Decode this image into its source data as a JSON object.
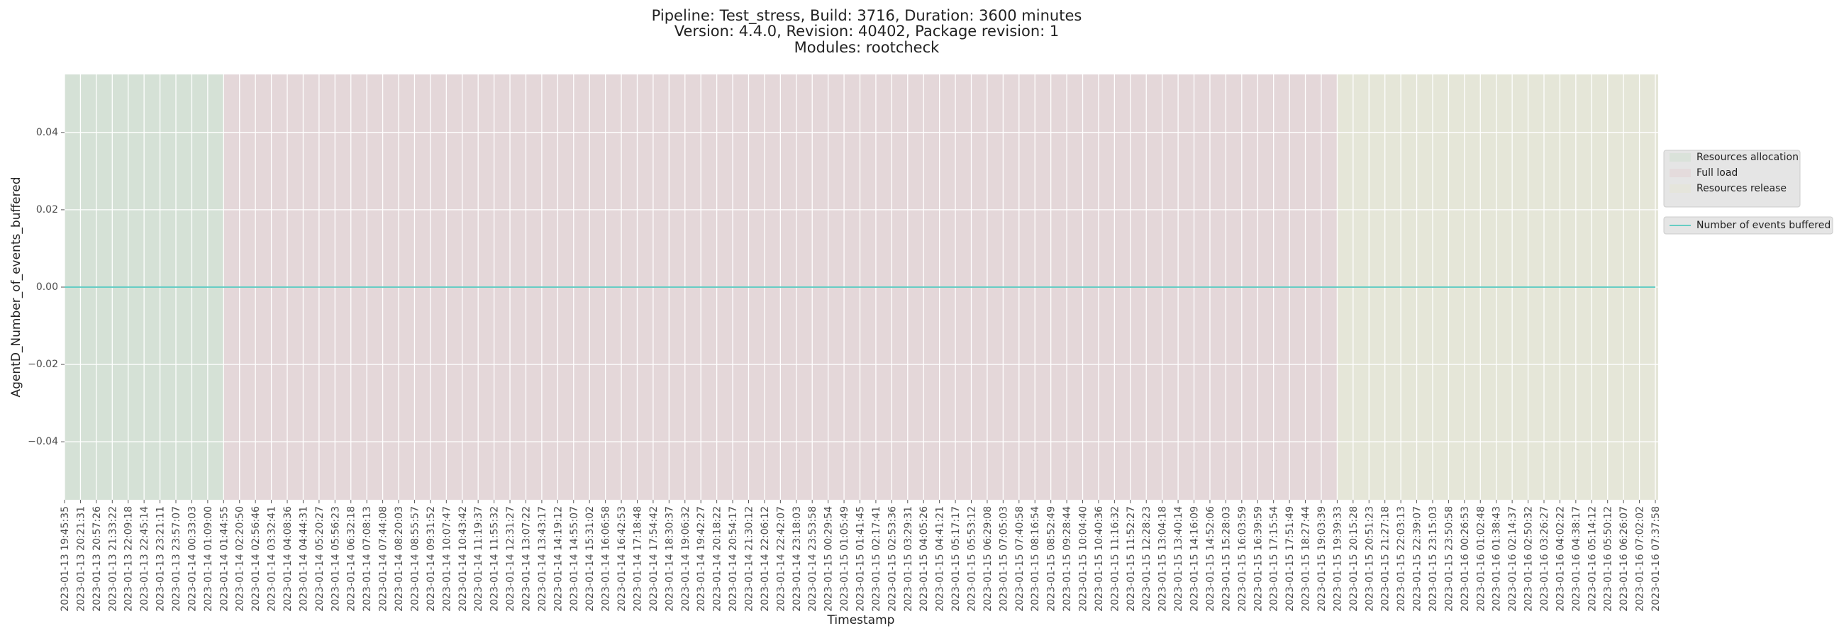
{
  "chart_data": {
    "type": "line",
    "title": [
      "Pipeline: Test_stress, Build: 3716, Duration: 3600 minutes",
      "Version: 4.4.0, Revision: 40402, Package revision: 1",
      "Modules: rootcheck"
    ],
    "x_label": "Timestamp",
    "y_label": "AgentD_Number_of_events_buffered",
    "categories": [
      "2023-01-13 19:45:35",
      "2023-01-13 20:21:31",
      "2023-01-13 20:57:26",
      "2023-01-13 21:33:22",
      "2023-01-13 22:09:18",
      "2023-01-13 22:45:14",
      "2023-01-13 23:21:11",
      "2023-01-13 23:57:07",
      "2023-01-14 00:33:03",
      "2023-01-14 01:09:00",
      "2023-01-14 01:44:55",
      "2023-01-14 02:20:50",
      "2023-01-14 02:56:46",
      "2023-01-14 03:32:41",
      "2023-01-14 04:08:36",
      "2023-01-14 04:44:31",
      "2023-01-14 05:20:27",
      "2023-01-14 05:56:23",
      "2023-01-14 06:32:18",
      "2023-01-14 07:08:13",
      "2023-01-14 07:44:08",
      "2023-01-14 08:20:03",
      "2023-01-14 08:55:57",
      "2023-01-14 09:31:52",
      "2023-01-14 10:07:47",
      "2023-01-14 10:43:42",
      "2023-01-14 11:19:37",
      "2023-01-14 11:55:32",
      "2023-01-14 12:31:27",
      "2023-01-14 13:07:22",
      "2023-01-14 13:43:17",
      "2023-01-14 14:19:12",
      "2023-01-14 14:55:07",
      "2023-01-14 15:31:02",
      "2023-01-14 16:06:58",
      "2023-01-14 16:42:53",
      "2023-01-14 17:18:48",
      "2023-01-14 17:54:42",
      "2023-01-14 18:30:37",
      "2023-01-14 19:06:32",
      "2023-01-14 19:42:27",
      "2023-01-14 20:18:22",
      "2023-01-14 20:54:17",
      "2023-01-14 21:30:12",
      "2023-01-14 22:06:12",
      "2023-01-14 22:42:07",
      "2023-01-14 23:18:03",
      "2023-01-14 23:53:58",
      "2023-01-15 00:29:54",
      "2023-01-15 01:05:49",
      "2023-01-15 01:41:45",
      "2023-01-15 02:17:41",
      "2023-01-15 02:53:36",
      "2023-01-15 03:29:31",
      "2023-01-15 04:05:26",
      "2023-01-15 04:41:21",
      "2023-01-15 05:17:17",
      "2023-01-15 05:53:12",
      "2023-01-15 06:29:08",
      "2023-01-15 07:05:03",
      "2023-01-15 07:40:58",
      "2023-01-15 08:16:54",
      "2023-01-15 08:52:49",
      "2023-01-15 09:28:44",
      "2023-01-15 10:04:40",
      "2023-01-15 10:40:36",
      "2023-01-15 11:16:32",
      "2023-01-15 11:52:27",
      "2023-01-15 12:28:23",
      "2023-01-15 13:04:18",
      "2023-01-15 13:40:14",
      "2023-01-15 14:16:09",
      "2023-01-15 14:52:06",
      "2023-01-15 15:28:03",
      "2023-01-15 16:03:59",
      "2023-01-15 16:39:59",
      "2023-01-15 17:15:54",
      "2023-01-15 17:51:49",
      "2023-01-15 18:27:44",
      "2023-01-15 19:03:39",
      "2023-01-15 19:39:33",
      "2023-01-15 20:15:28",
      "2023-01-15 20:51:23",
      "2023-01-15 21:27:18",
      "2023-01-15 22:03:13",
      "2023-01-15 22:39:07",
      "2023-01-15 23:15:03",
      "2023-01-15 23:50:58",
      "2023-01-16 00:26:53",
      "2023-01-16 01:02:48",
      "2023-01-16 01:38:43",
      "2023-01-16 02:14:37",
      "2023-01-16 02:50:32",
      "2023-01-16 03:26:27",
      "2023-01-16 04:02:22",
      "2023-01-16 04:38:17",
      "2023-01-16 05:14:12",
      "2023-01-16 05:50:12",
      "2023-01-16 06:26:07",
      "2023-01-16 07:02:02",
      "2023-01-16 07:37:58"
    ],
    "series": [
      {
        "name": "Number of events buffered",
        "color": "#66cdc4",
        "values": [
          0,
          0,
          0,
          0,
          0,
          0,
          0,
          0,
          0,
          0,
          0,
          0,
          0,
          0,
          0,
          0,
          0,
          0,
          0,
          0,
          0,
          0,
          0,
          0,
          0,
          0,
          0,
          0,
          0,
          0,
          0,
          0,
          0,
          0,
          0,
          0,
          0,
          0,
          0,
          0,
          0,
          0,
          0,
          0,
          0,
          0,
          0,
          0,
          0,
          0,
          0,
          0,
          0,
          0,
          0,
          0,
          0,
          0,
          0,
          0,
          0,
          0,
          0,
          0,
          0,
          0,
          0,
          0,
          0,
          0,
          0,
          0,
          0,
          0,
          0,
          0,
          0,
          0,
          0,
          0,
          0,
          0,
          0,
          0,
          0,
          0,
          0,
          0,
          0,
          0,
          0,
          0,
          0,
          0,
          0,
          0,
          0,
          0,
          0,
          0,
          0
        ]
      }
    ],
    "phases": [
      {
        "name": "Resources allocation",
        "color": "#d5e1d6",
        "start": "2023-01-13 19:45:35",
        "end": "2023-01-14 01:44:55"
      },
      {
        "name": "Full load",
        "color": "#e4d7d9",
        "start": "2023-01-14 01:44:55",
        "end": "2023-01-15 19:39:33"
      },
      {
        "name": "Resources release",
        "color": "#e5e6d8",
        "start": "2023-01-15 19:39:33",
        "end": "2023-01-16 07:37:58"
      }
    ],
    "ylim": [
      -0.055,
      0.055
    ],
    "yticks": [
      {
        "value": -0.04,
        "label": "−0.04"
      },
      {
        "value": -0.02,
        "label": "−0.02"
      },
      {
        "value": 0,
        "label": "0.00"
      },
      0.02,
      0.04
    ],
    "grid": true,
    "legend": "right"
  }
}
